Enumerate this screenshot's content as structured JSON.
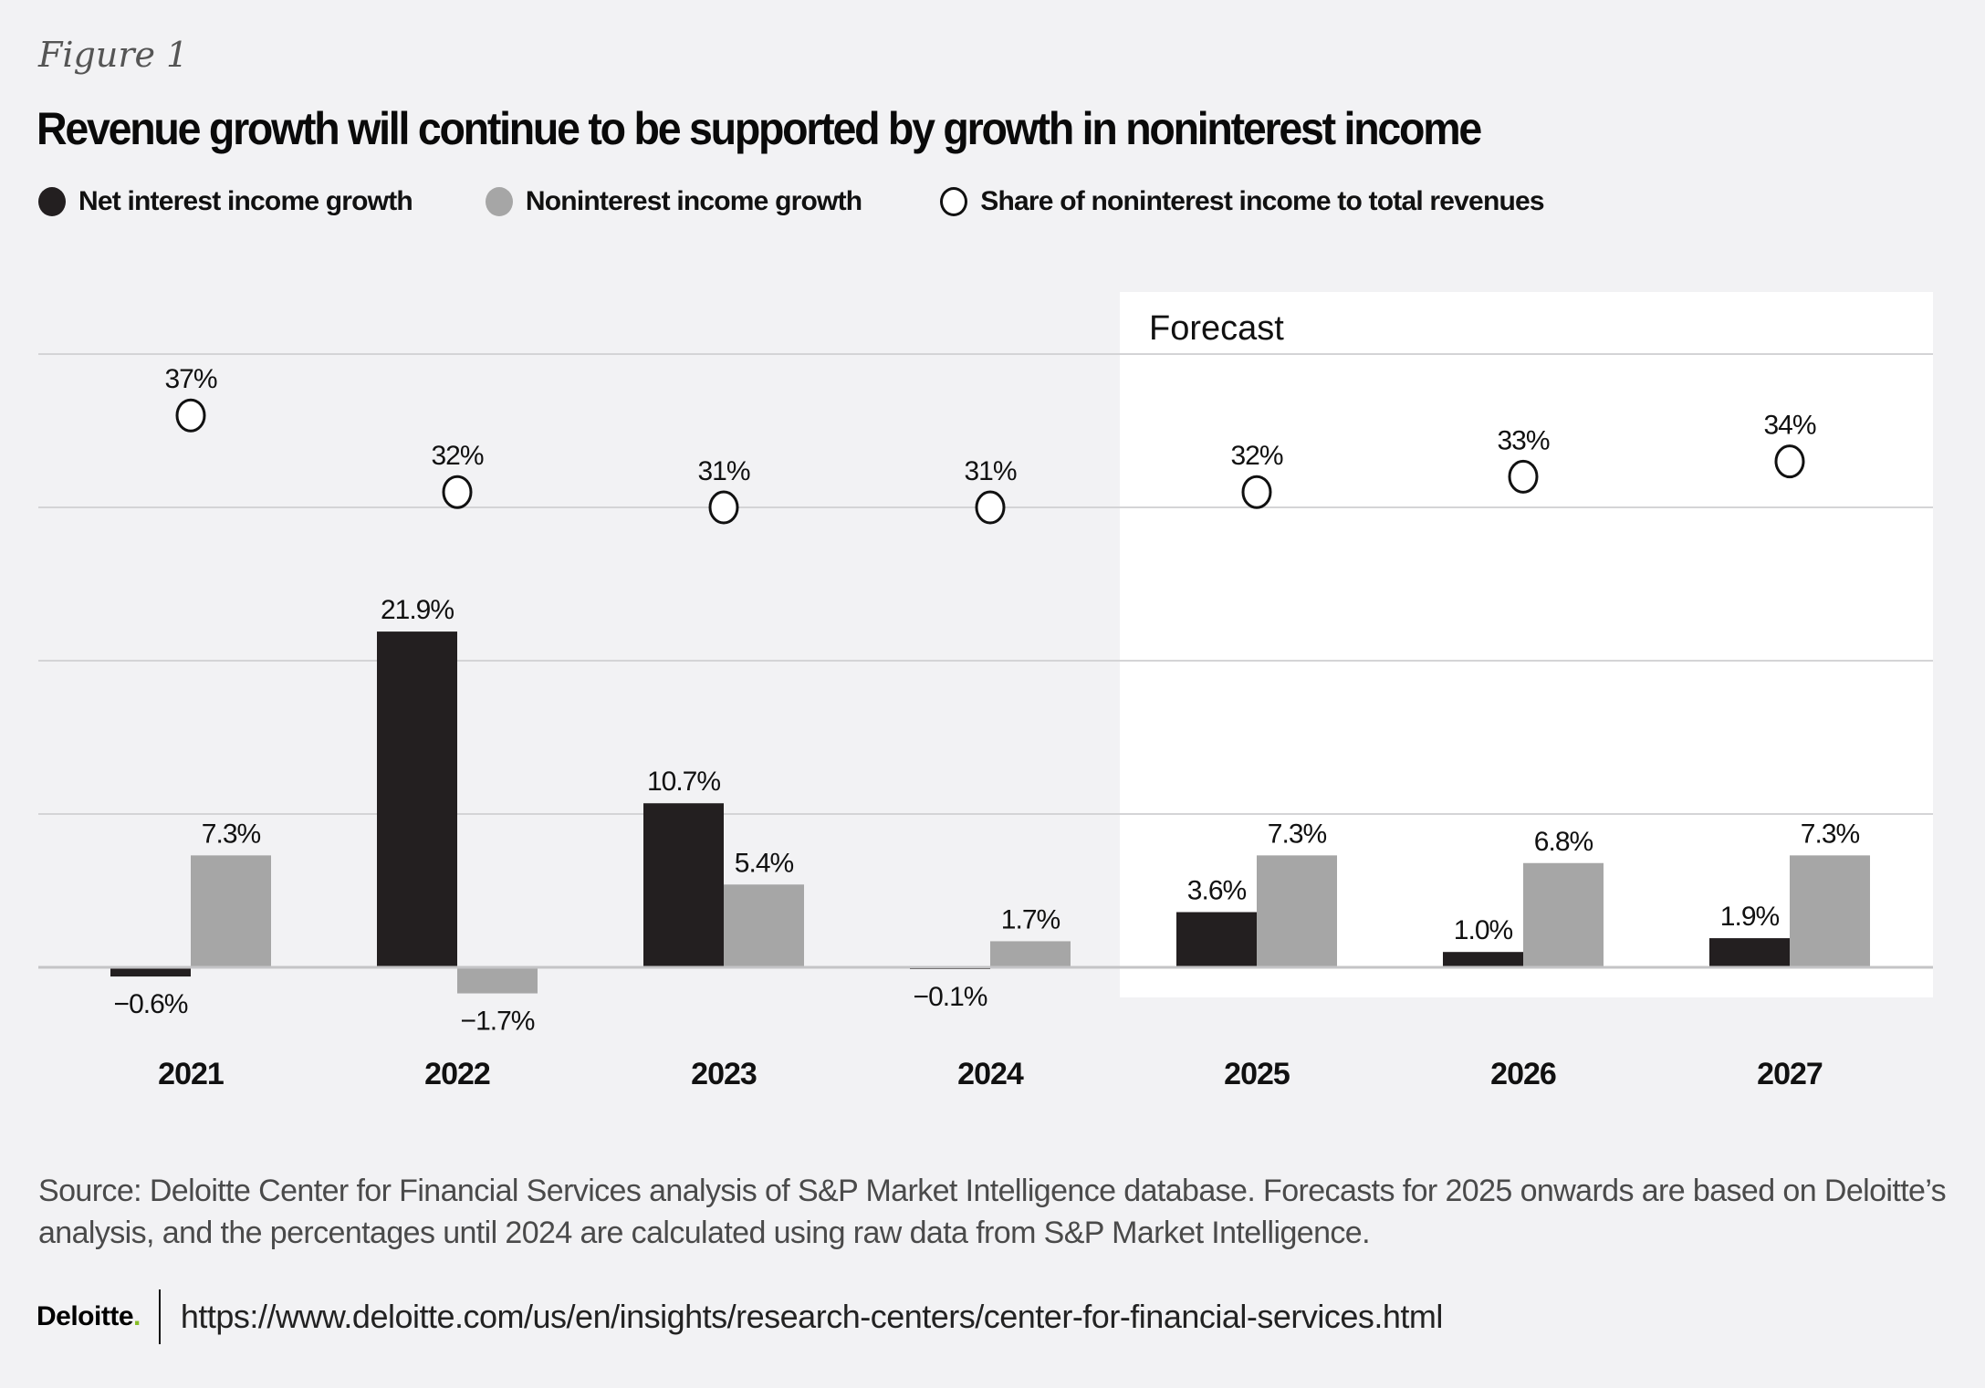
{
  "figure_label": "Figure 1",
  "title": "Revenue growth will continue to be supported by growth in noninterest income",
  "legend": [
    {
      "label": "Net interest income growth",
      "color": "#231f20",
      "marker": "filled-circle"
    },
    {
      "label": "Noninterest income growth",
      "color": "#a6a6a6",
      "marker": "filled-circle"
    },
    {
      "label": "Share of noninterest income to total revenues",
      "color": "#ffffff",
      "marker": "hollow-circle"
    }
  ],
  "chart_data": {
    "type": "bar",
    "title": "Revenue growth will continue to be supported by growth in noninterest income",
    "xlabel": "",
    "ylabel": "",
    "categories": [
      "2021",
      "2022",
      "2023",
      "2024",
      "2025",
      "2026",
      "2027"
    ],
    "series": [
      {
        "name": "Net interest income growth",
        "type": "bar",
        "color": "#231f20",
        "values": [
          -0.6,
          21.9,
          10.7,
          -0.1,
          3.6,
          1.0,
          1.9
        ],
        "labels": [
          "−0.6%",
          "21.9%",
          "10.7%",
          "−0.1%",
          "3.6%",
          "1.0%",
          "1.9%"
        ]
      },
      {
        "name": "Noninterest income growth",
        "type": "bar",
        "color": "#a6a6a6",
        "values": [
          7.3,
          -1.7,
          5.4,
          1.7,
          7.3,
          6.8,
          7.3
        ],
        "labels": [
          "7.3%",
          "−1.7%",
          "5.4%",
          "1.7%",
          "7.3%",
          "6.8%",
          "7.3%"
        ]
      },
      {
        "name": "Share of noninterest income to total revenues",
        "type": "scatter",
        "marker": "hollow-circle",
        "values": [
          37,
          32,
          31,
          31,
          32,
          33,
          34
        ],
        "labels": [
          "37%",
          "32%",
          "31%",
          "31%",
          "32%",
          "33%",
          "34%"
        ]
      }
    ],
    "ylim": [
      -2,
      40
    ],
    "gridlines": [
      0,
      10,
      20,
      30,
      40
    ],
    "grid": true,
    "forecast_region": {
      "label": "Forecast",
      "from_category": "2025",
      "to_category": "2027"
    },
    "legend_position": "top-left"
  },
  "source": "Source: Deloitte Center for Financial Services analysis of S&P Market Intelligence database. Forecasts for 2025 onwards are based on Deloitte’s analysis, and the percentages until 2024 are calculated using raw data from S&P Market Intelligence.",
  "footer": {
    "logo_text": "Deloitte",
    "logo_dot": ".",
    "url": "https://www.deloitte.com/us/en/insights/research-centers/center-for-financial-services.html"
  }
}
